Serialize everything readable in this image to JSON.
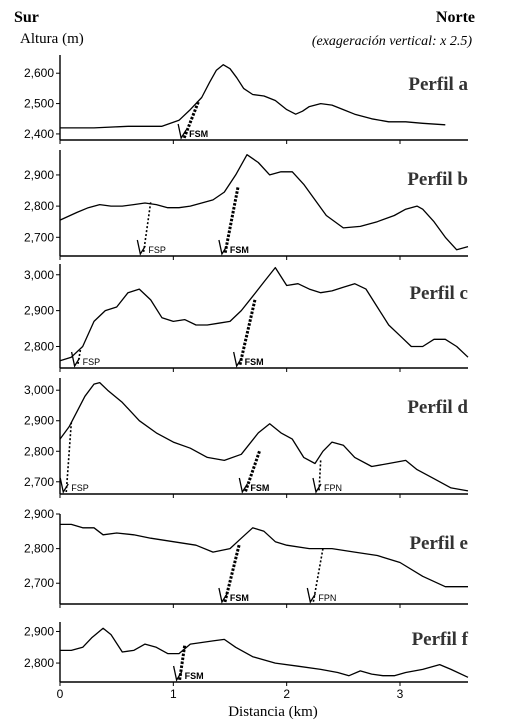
{
  "header": {
    "left_title": "Sur",
    "right_title": "Norte",
    "ylabel": "Altura (m)",
    "note": "(exageración vertical: x 2.5)"
  },
  "xaxis": {
    "label": "Distancia (km)",
    "ticks": [
      0,
      1,
      2,
      3
    ],
    "range": [
      0,
      3.6
    ]
  },
  "chart_data": [
    {
      "type": "line",
      "title": "Perfil a",
      "ylim": [
        2380,
        2660
      ],
      "yticks": [
        2400,
        2500,
        2600
      ],
      "series": [
        {
          "x": [
            0,
            0.3,
            0.6,
            0.9,
            1.05,
            1.15,
            1.25,
            1.32,
            1.38,
            1.44,
            1.5,
            1.56,
            1.62,
            1.7,
            1.8,
            1.9,
            2.0,
            2.08,
            2.14,
            2.2,
            2.3,
            2.4,
            2.5,
            2.6,
            2.75,
            2.9,
            3.05,
            3.2,
            3.4
          ],
          "y": [
            2420,
            2420,
            2425,
            2425,
            2445,
            2480,
            2520,
            2570,
            2610,
            2628,
            2615,
            2585,
            2550,
            2530,
            2525,
            2510,
            2480,
            2465,
            2475,
            2490,
            2500,
            2495,
            2480,
            2465,
            2450,
            2440,
            2440,
            2435,
            2430
          ]
        }
      ],
      "faults": [
        {
          "label": "FSM",
          "x": 1.06,
          "line_top_x": 1.22,
          "line_top_y": 2505
        }
      ]
    },
    {
      "type": "line",
      "title": "Perfil b",
      "ylim": [
        2640,
        2980
      ],
      "yticks": [
        2700,
        2800,
        2900
      ],
      "series": [
        {
          "x": [
            0,
            0.15,
            0.25,
            0.35,
            0.45,
            0.55,
            0.65,
            0.75,
            0.85,
            0.95,
            1.05,
            1.15,
            1.25,
            1.35,
            1.45,
            1.55,
            1.65,
            1.75,
            1.85,
            1.95,
            2.05,
            2.15,
            2.25,
            2.35,
            2.5,
            2.65,
            2.8,
            2.95,
            3.05,
            3.15,
            3.2,
            3.3,
            3.4,
            3.5,
            3.6
          ],
          "y": [
            2755,
            2780,
            2795,
            2805,
            2800,
            2800,
            2805,
            2810,
            2805,
            2795,
            2795,
            2800,
            2810,
            2820,
            2845,
            2900,
            2965,
            2940,
            2900,
            2910,
            2910,
            2870,
            2820,
            2770,
            2730,
            2735,
            2750,
            2770,
            2790,
            2800,
            2790,
            2750,
            2700,
            2660,
            2670
          ]
        }
      ],
      "faults": [
        {
          "label": "FSP",
          "x": 0.7,
          "line_top_x": 0.8,
          "line_top_y": 2812
        },
        {
          "label": "FSM",
          "x": 1.42,
          "line_top_x": 1.57,
          "line_top_y": 2860
        }
      ]
    },
    {
      "type": "line",
      "title": "Perfil c",
      "ylim": [
        2740,
        3030
      ],
      "yticks": [
        2800,
        2900,
        3000
      ],
      "series": [
        {
          "x": [
            0,
            0.1,
            0.2,
            0.3,
            0.4,
            0.5,
            0.6,
            0.7,
            0.8,
            0.9,
            1.0,
            1.1,
            1.2,
            1.3,
            1.4,
            1.5,
            1.6,
            1.7,
            1.8,
            1.9,
            2.0,
            2.1,
            2.2,
            2.3,
            2.4,
            2.5,
            2.6,
            2.7,
            2.8,
            2.9,
            3.0,
            3.1,
            3.2,
            3.3,
            3.4,
            3.5,
            3.6
          ],
          "y": [
            2760,
            2770,
            2800,
            2870,
            2900,
            2910,
            2950,
            2960,
            2930,
            2880,
            2870,
            2875,
            2860,
            2860,
            2865,
            2870,
            2900,
            2940,
            2980,
            3020,
            2970,
            2975,
            2960,
            2950,
            2955,
            2965,
            2975,
            2960,
            2910,
            2860,
            2830,
            2800,
            2800,
            2820,
            2820,
            2800,
            2770
          ]
        }
      ],
      "faults": [
        {
          "label": "FSP",
          "x": 0.12,
          "line_top_x": 0.18,
          "line_top_y": 2790
        },
        {
          "label": "FSM",
          "x": 1.55,
          "line_top_x": 1.72,
          "line_top_y": 2930
        }
      ]
    },
    {
      "type": "line",
      "title": "Perfil d",
      "ylim": [
        2660,
        3040
      ],
      "yticks": [
        2700,
        2800,
        2900,
        3000
      ],
      "series": [
        {
          "x": [
            0,
            0.08,
            0.15,
            0.22,
            0.3,
            0.35,
            0.42,
            0.55,
            0.7,
            0.85,
            1.0,
            1.15,
            1.3,
            1.45,
            1.6,
            1.75,
            1.85,
            1.95,
            2.05,
            2.15,
            2.25,
            2.32,
            2.4,
            2.5,
            2.6,
            2.75,
            2.9,
            3.05,
            3.15,
            3.3,
            3.45,
            3.6
          ],
          "y": [
            2840,
            2880,
            2930,
            2980,
            3020,
            3025,
            3000,
            2960,
            2900,
            2860,
            2830,
            2810,
            2780,
            2770,
            2790,
            2860,
            2890,
            2860,
            2840,
            2780,
            2760,
            2800,
            2830,
            2820,
            2780,
            2750,
            2760,
            2770,
            2740,
            2710,
            2680,
            2670
          ]
        }
      ],
      "faults": [
        {
          "label": "FSP",
          "x": 0.02,
          "line_top_x": 0.1,
          "line_top_y": 2895
        },
        {
          "label": "FSM",
          "x": 1.6,
          "line_top_x": 1.76,
          "line_top_y": 2800
        },
        {
          "label": "FPN",
          "x": 2.25,
          "line_top_x": 2.3,
          "line_top_y": 2770
        }
      ]
    },
    {
      "type": "line",
      "title": "Perfil e",
      "ylim": [
        2640,
        2900
      ],
      "yticks": [
        2700,
        2800,
        2900
      ],
      "series": [
        {
          "x": [
            0,
            0.1,
            0.2,
            0.3,
            0.38,
            0.5,
            0.65,
            0.8,
            1.0,
            1.2,
            1.35,
            1.5,
            1.6,
            1.7,
            1.8,
            1.9,
            2.0,
            2.2,
            2.4,
            2.6,
            2.8,
            3.0,
            3.2,
            3.4,
            3.6
          ],
          "y": [
            2870,
            2870,
            2860,
            2860,
            2840,
            2845,
            2840,
            2830,
            2820,
            2810,
            2790,
            2800,
            2830,
            2860,
            2850,
            2820,
            2810,
            2800,
            2800,
            2790,
            2780,
            2760,
            2720,
            2690,
            2690
          ]
        }
      ],
      "faults": [
        {
          "label": "FSM",
          "x": 1.42,
          "line_top_x": 1.58,
          "line_top_y": 2810
        },
        {
          "label": "FPN",
          "x": 2.2,
          "line_top_x": 2.32,
          "line_top_y": 2800
        }
      ]
    },
    {
      "type": "line",
      "title": "Perfil f",
      "ylim": [
        2740,
        2930
      ],
      "yticks": [
        2800,
        2900
      ],
      "series": [
        {
          "x": [
            0,
            0.1,
            0.2,
            0.28,
            0.38,
            0.45,
            0.55,
            0.65,
            0.75,
            0.85,
            0.95,
            1.05,
            1.15,
            1.25,
            1.35,
            1.45,
            1.55,
            1.7,
            1.9,
            2.1,
            2.3,
            2.45,
            2.55,
            2.65,
            2.75,
            2.85,
            2.95,
            3.05,
            3.2,
            3.35,
            3.45,
            3.6
          ],
          "y": [
            2840,
            2840,
            2850,
            2880,
            2910,
            2890,
            2835,
            2840,
            2860,
            2850,
            2830,
            2830,
            2860,
            2865,
            2870,
            2875,
            2850,
            2820,
            2800,
            2790,
            2780,
            2770,
            2760,
            2775,
            2765,
            2760,
            2760,
            2770,
            2780,
            2795,
            2780,
            2755
          ]
        }
      ],
      "faults": [
        {
          "label": "FSM",
          "x": 1.02,
          "line_top_x": 1.1,
          "line_top_y": 2855
        }
      ]
    }
  ]
}
